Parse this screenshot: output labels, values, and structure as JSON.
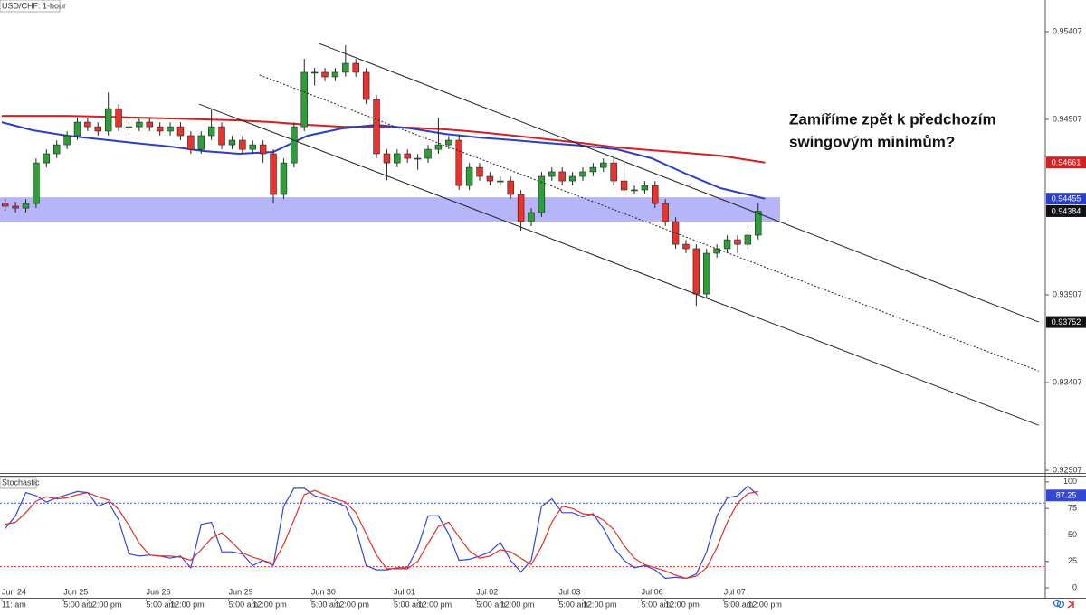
{
  "chart_data": [
    {
      "type": "candlestick",
      "title": "USD/CHF: 1-hour",
      "x": [
        12,
        15,
        18,
        21,
        24,
        27,
        30,
        33,
        36,
        39,
        42,
        45,
        48,
        51,
        54,
        57,
        60,
        63,
        66,
        69,
        72,
        75,
        78,
        81,
        84,
        87,
        90,
        93,
        96,
        99,
        102,
        105,
        108,
        111,
        114,
        117,
        120,
        123,
        126,
        129,
        132,
        135,
        138,
        141,
        144,
        147,
        150,
        153,
        156,
        159,
        162,
        165,
        168,
        171,
        174,
        177,
        180,
        183,
        186,
        189,
        192,
        195,
        198,
        201,
        204,
        207,
        210,
        213,
        216,
        219,
        222,
        225,
        228,
        231
      ],
      "open": [
        0.9443,
        0.94412,
        0.94401,
        0.94427,
        0.94659,
        0.94711,
        0.94762,
        0.94814,
        0.94891,
        0.94865,
        0.9484,
        0.94968,
        0.94865,
        0.94865,
        0.94891,
        0.94865,
        0.9484,
        0.94865,
        0.94814,
        0.94736,
        0.94814,
        0.94865,
        0.94762,
        0.94788,
        0.94736,
        0.94762,
        0.94711,
        0.94479,
        0.94659,
        0.94865,
        0.95175,
        0.95175,
        0.95149,
        0.95175,
        0.95226,
        0.95175,
        0.9502,
        0.94711,
        0.94659,
        0.94711,
        0.94685,
        0.94685,
        0.94736,
        0.94762,
        0.94788,
        0.9453,
        0.94633,
        0.94582,
        0.94556,
        0.94556,
        0.94479,
        0.94324,
        0.94376,
        0.94582,
        0.94608,
        0.94556,
        0.94582,
        0.94608,
        0.94633,
        0.94659,
        0.94556,
        0.94505,
        0.94505,
        0.9453,
        0.94427,
        0.94324,
        0.94195,
        0.9417,
        0.93912,
        0.94144,
        0.9417,
        0.94221,
        0.94195,
        0.94247
      ],
      "high": [
        0.94455,
        0.94437,
        0.94452,
        0.94684,
        0.94736,
        0.94787,
        0.94839,
        0.94916,
        0.94916,
        0.9489,
        0.9506,
        0.94993,
        0.9489,
        0.94916,
        0.94916,
        0.9489,
        0.9489,
        0.9489,
        0.94839,
        0.94839,
        0.94968,
        0.9489,
        0.94813,
        0.94813,
        0.94787,
        0.94787,
        0.94736,
        0.94684,
        0.9489,
        0.95252,
        0.952,
        0.952,
        0.952,
        0.9533,
        0.95251,
        0.952,
        0.95045,
        0.94736,
        0.94736,
        0.94736,
        0.9471,
        0.94761,
        0.94916,
        0.94813,
        0.94813,
        0.94658,
        0.94658,
        0.94607,
        0.94581,
        0.94581,
        0.94504,
        0.94401,
        0.94607,
        0.94633,
        0.94633,
        0.94607,
        0.94633,
        0.94658,
        0.94684,
        0.94684,
        0.94659,
        0.9453,
        0.94555,
        0.94555,
        0.94452,
        0.94349,
        0.9422,
        0.94195,
        0.94169,
        0.94195,
        0.94246,
        0.94246,
        0.94272,
        0.9443
      ],
      "low": [
        0.94387,
        0.94376,
        0.94376,
        0.94402,
        0.94634,
        0.94686,
        0.94737,
        0.94789,
        0.9484,
        0.94815,
        0.94815,
        0.9484,
        0.9484,
        0.9484,
        0.9484,
        0.94815,
        0.94815,
        0.94789,
        0.94711,
        0.94711,
        0.94789,
        0.94737,
        0.94737,
        0.94711,
        0.94711,
        0.9466,
        0.94428,
        0.94454,
        0.94634,
        0.9484,
        0.951,
        0.95124,
        0.95124,
        0.9515,
        0.9515,
        0.94995,
        0.94686,
        0.9456,
        0.94634,
        0.9466,
        0.9462,
        0.9466,
        0.94711,
        0.94737,
        0.94505,
        0.94505,
        0.94557,
        0.94531,
        0.94531,
        0.94454,
        0.94273,
        0.94299,
        0.94351,
        0.94557,
        0.94531,
        0.94531,
        0.94557,
        0.94583,
        0.94608,
        0.94531,
        0.9448,
        0.9448,
        0.9448,
        0.94402,
        0.94299,
        0.9417,
        0.94145,
        0.93845,
        0.93887,
        0.94119,
        0.94145,
        0.94145,
        0.9417,
        0.94222
      ],
      "close": [
        0.94412,
        0.94401,
        0.94427,
        0.94659,
        0.94711,
        0.94762,
        0.94814,
        0.94891,
        0.94865,
        0.9484,
        0.94968,
        0.94865,
        0.94865,
        0.94891,
        0.94865,
        0.9484,
        0.94865,
        0.94814,
        0.94736,
        0.94814,
        0.94865,
        0.94762,
        0.94788,
        0.94736,
        0.94762,
        0.94711,
        0.94479,
        0.94659,
        0.94865,
        0.95175,
        0.95175,
        0.95149,
        0.95175,
        0.95226,
        0.95175,
        0.9502,
        0.94711,
        0.94659,
        0.94711,
        0.94685,
        0.94685,
        0.94736,
        0.94762,
        0.94788,
        0.9453,
        0.94633,
        0.94582,
        0.94556,
        0.94556,
        0.94479,
        0.94324,
        0.94376,
        0.94582,
        0.94608,
        0.94556,
        0.94582,
        0.94608,
        0.94633,
        0.94659,
        0.94556,
        0.94505,
        0.94505,
        0.9453,
        0.94427,
        0.94324,
        0.94195,
        0.9417,
        0.93912,
        0.94144,
        0.9417,
        0.94221,
        0.94195,
        0.94247,
        0.94384
      ],
      "up_color": "#2e9e3a",
      "down_color": "#e8332e",
      "wick_color": "#222222",
      "series": [
        {
          "color": "#d42020",
          "x": [
            11,
            20,
            30,
            40,
            50,
            60,
            70,
            80,
            90,
            100,
            110,
            120,
            130,
            140,
            150,
            160,
            170,
            180,
            190,
            200,
            210,
            220,
            233
          ],
          "values": [
            0.94927,
            0.94927,
            0.94927,
            0.94922,
            0.94917,
            0.94912,
            0.94907,
            0.94901,
            0.94891,
            0.94876,
            0.94865,
            0.94865,
            0.9486,
            0.9485,
            0.94834,
            0.94814,
            0.94793,
            0.94772,
            0.94747,
            0.94731,
            0.94716,
            0.947,
            0.94661
          ]
        },
        {
          "color": "#2a3fc8",
          "x": [
            11,
            20,
            30,
            40,
            50,
            60,
            70,
            80,
            90,
            100,
            110,
            120,
            130,
            140,
            150,
            160,
            170,
            180,
            190,
            200,
            210,
            220,
            233
          ],
          "values": [
            0.94891,
            0.94845,
            0.94814,
            0.94793,
            0.94772,
            0.94752,
            0.94726,
            0.94711,
            0.94721,
            0.94814,
            0.94855,
            0.94876,
            0.94855,
            0.94824,
            0.94803,
            0.94788,
            0.94772,
            0.94757,
            0.94736,
            0.94685,
            0.94597,
            0.94515,
            0.94455
          ]
        }
      ],
      "channels": [
        {
          "x": [
            103.2,
            312.6
          ],
          "y": [
            0.9534,
            0.93752
          ],
          "dashed": false,
          "price_label": true
        },
        {
          "x": [
            86,
            312.6
          ],
          "y": [
            0.95159,
            0.93473
          ],
          "dashed": true,
          "price_label": false
        },
        {
          "x": [
            68.4,
            312.6
          ],
          "y": [
            0.94994,
            0.93164
          ],
          "dashed": false,
          "price_label": false
        }
      ],
      "zone": {
        "x": [
          10.5,
          237.4
        ],
        "y": [
          0.94324,
          0.94463
        ],
        "color": "#9c9cf5"
      },
      "annotation": [
        "Zamíříme zpět k předchozím",
        "swingovým minimům?"
      ],
      "xlim": [
        10.5,
        314.5
      ],
      "ylim": [
        0.92897,
        0.95587
      ],
      "yticks": [
        0.95407,
        0.94907,
        0.93907,
        0.93407,
        0.92907
      ],
      "xticks": [
        {
          "value": 5,
          "label": "Jun 24"
        },
        {
          "value": 29,
          "label": "Jun 25"
        },
        {
          "value": 53,
          "label": "Jun 26"
        },
        {
          "value": 77,
          "label": "Jun 29"
        },
        {
          "value": 101,
          "label": "Jun 30"
        },
        {
          "value": 125,
          "label": "Jul 01"
        },
        {
          "value": 149,
          "label": "Jul 02"
        },
        {
          "value": 173,
          "label": "Jul 03"
        },
        {
          "value": 197,
          "label": "Jul 06"
        },
        {
          "value": 221,
          "label": "Jul 07"
        }
      ],
      "time_ticks": [
        {
          "value": 11,
          "label": "11: am"
        },
        {
          "value": 29,
          "label": "5:00 am"
        },
        {
          "value": 36,
          "label": "12:00 pm"
        },
        {
          "value": 53,
          "label": "5:00 am"
        },
        {
          "value": 60,
          "label": "12:00 pm"
        },
        {
          "value": 77,
          "label": "5:00 am"
        },
        {
          "value": 84,
          "label": "12:00 pm"
        },
        {
          "value": 101,
          "label": "5:00 am"
        },
        {
          "value": 108,
          "label": "12:00 pm"
        },
        {
          "value": 125,
          "label": "5:00 am"
        },
        {
          "value": 132,
          "label": "12:00 pm"
        },
        {
          "value": 149,
          "label": "5:00 am"
        },
        {
          "value": 156,
          "label": "12:00 pm"
        },
        {
          "value": 173,
          "label": "5:00 am"
        },
        {
          "value": 180,
          "label": "12:00 pm"
        },
        {
          "value": 197,
          "label": "5:00 am"
        },
        {
          "value": 204,
          "label": "12:00 pm"
        },
        {
          "value": 221,
          "label": "5:00 am"
        },
        {
          "value": 228,
          "label": "12:00 pm"
        }
      ],
      "grid": false
    },
    {
      "type": "line",
      "title": "Stochastic",
      "x": [
        12,
        15,
        18,
        21,
        24,
        27,
        30,
        33,
        36,
        39,
        42,
        45,
        48,
        51,
        54,
        57,
        60,
        63,
        66,
        69,
        72,
        75,
        78,
        81,
        84,
        87,
        90,
        93,
        96,
        99,
        102,
        105,
        108,
        111,
        114,
        117,
        120,
        123,
        126,
        129,
        132,
        135,
        138,
        141,
        144,
        147,
        150,
        153,
        156,
        159,
        162,
        165,
        168,
        171,
        174,
        177,
        180,
        183,
        186,
        189,
        192,
        195,
        198,
        201,
        204,
        207,
        210,
        213,
        216,
        219,
        222,
        225,
        228,
        231
      ],
      "series": [
        {
          "color": "#3346d6",
          "price_label": true,
          "values": [
            56,
            68,
            90,
            87,
            81,
            85,
            88,
            91,
            90,
            77,
            81,
            64,
            32,
            30,
            31,
            30,
            28,
            30,
            19,
            60,
            62,
            34,
            34,
            32,
            21,
            26,
            21,
            77,
            94,
            94,
            87,
            84,
            81,
            77,
            56,
            21,
            17,
            17,
            19,
            19,
            38,
            68,
            68,
            51,
            26,
            27,
            30,
            34,
            43,
            26,
            15,
            26,
            77,
            84,
            71,
            71,
            67,
            70,
            56,
            38,
            26,
            19,
            21,
            17,
            9,
            10,
            9,
            13,
            34,
            68,
            85,
            87,
            96,
            87.25
          ]
        },
        {
          "color": "#e0302a",
          "price_label": false,
          "values": [
            60,
            62,
            71,
            82,
            86,
            84,
            85,
            88,
            90,
            86,
            83,
            74,
            59,
            42,
            31,
            30,
            30,
            29,
            26,
            36,
            47,
            52,
            43,
            33,
            29,
            26,
            23,
            41,
            64,
            88,
            92,
            88,
            84,
            81,
            71,
            51,
            31,
            18,
            18,
            18,
            25,
            42,
            58,
            62,
            48,
            35,
            28,
            30,
            36,
            34,
            28,
            22,
            39,
            62,
            77,
            75,
            70,
            69,
            64,
            55,
            40,
            28,
            22,
            19,
            16,
            12,
            9,
            11,
            19,
            38,
            62,
            80,
            89,
            91
          ]
        }
      ],
      "levels": [
        {
          "value": 80,
          "color": "#3346d6"
        },
        {
          "value": 20,
          "color": "#e0302a"
        }
      ],
      "xlim": [
        10.5,
        314.5
      ],
      "ylim": [
        -8.5,
        105
      ],
      "yticks": [
        0,
        25,
        50,
        75,
        100
      ],
      "grid": false
    }
  ]
}
